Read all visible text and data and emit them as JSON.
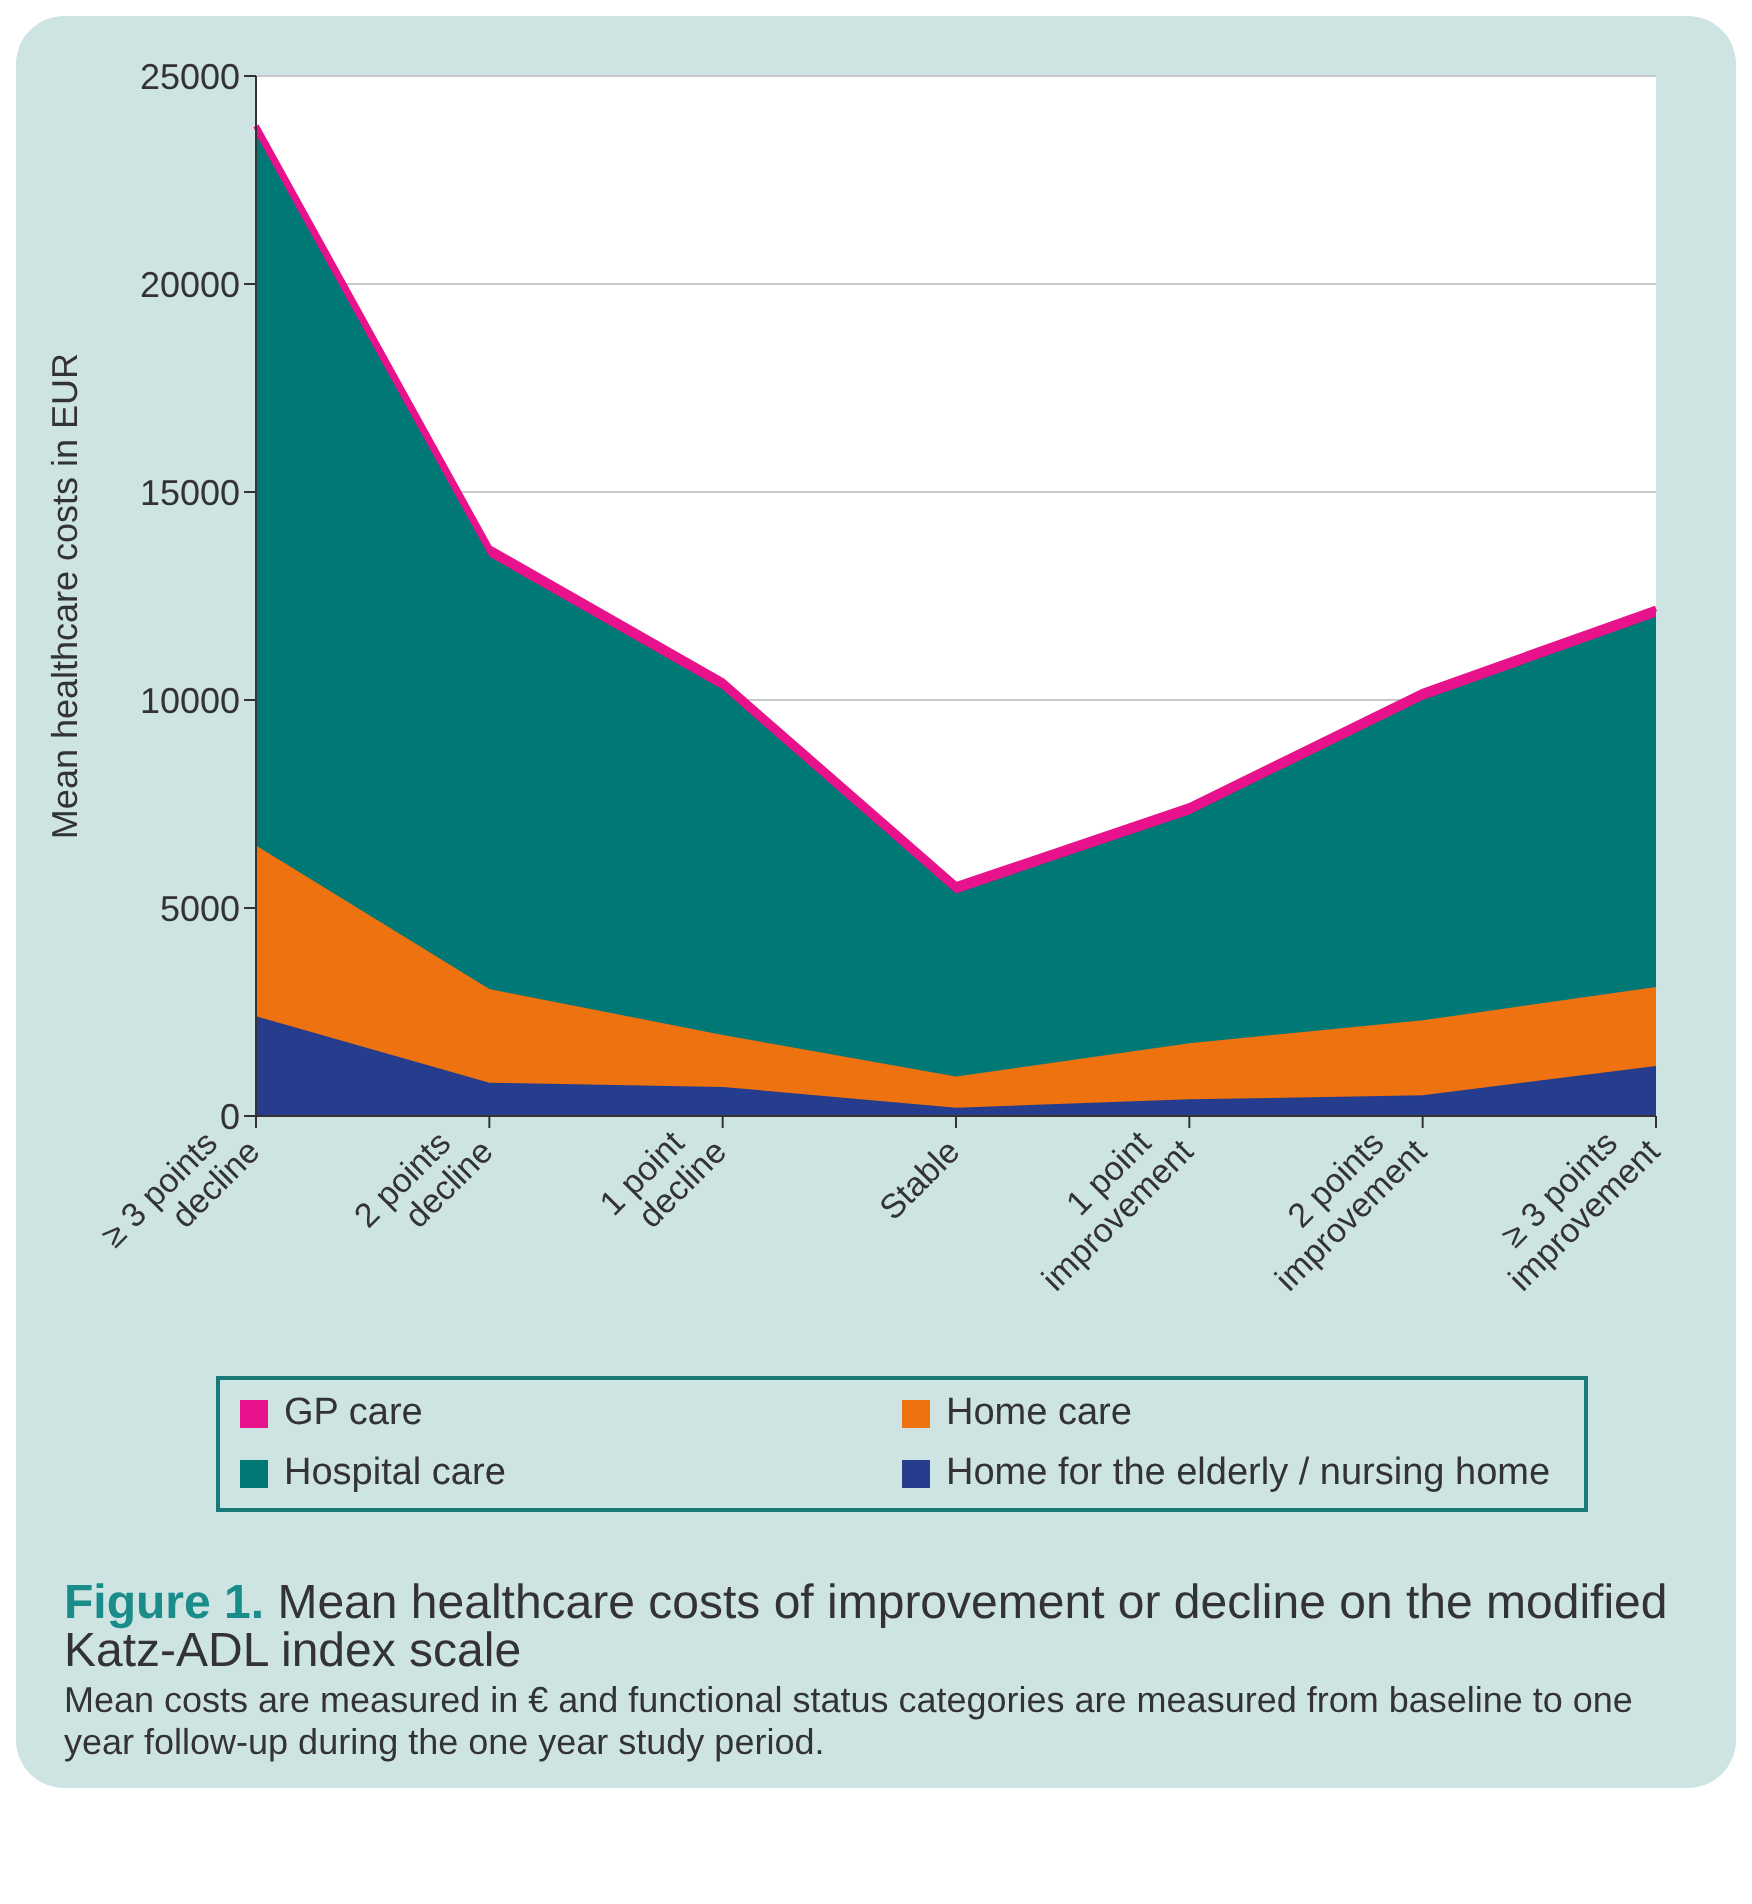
{
  "chart_data": {
    "type": "area",
    "stacked": true,
    "title": "Figure 1. Mean healthcare costs of improvement or decline on the modified  Katz-ADL index scale",
    "ylabel": "Mean healthcare costs in EUR",
    "categories": [
      "≥ 3 points decline",
      "2 points decline",
      "1 point decline",
      "Stable",
      "1 point improvement",
      "2 points improvement",
      "≥ 3 points improvement"
    ],
    "series": [
      {
        "name": "Home for the elderly / nursing home",
        "color": "#253d8c",
        "values": [
          2400,
          800,
          700,
          200,
          400,
          500,
          1200
        ]
      },
      {
        "name": "Home care",
        "color": "#ee720f",
        "values": [
          4100,
          2250,
          1250,
          750,
          1350,
          1800,
          1900
        ]
      },
      {
        "name": "Hospital care",
        "color": "#007875",
        "values": [
          17100,
          10400,
          8300,
          4400,
          5500,
          7700,
          8900
        ]
      },
      {
        "name": "GP care",
        "color": "#e8128c",
        "values": [
          200,
          200,
          200,
          200,
          200,
          200,
          200
        ]
      }
    ],
    "ylim": [
      0,
      25000
    ],
    "yticks": [
      0,
      5000,
      10000,
      15000,
      20000,
      25000
    ],
    "grid": "y",
    "legend": "bottom",
    "annotations": [
      "Mean costs are measured in € and functional status categories are measured from baseline to one year follow-up during the one year study period."
    ]
  }
}
